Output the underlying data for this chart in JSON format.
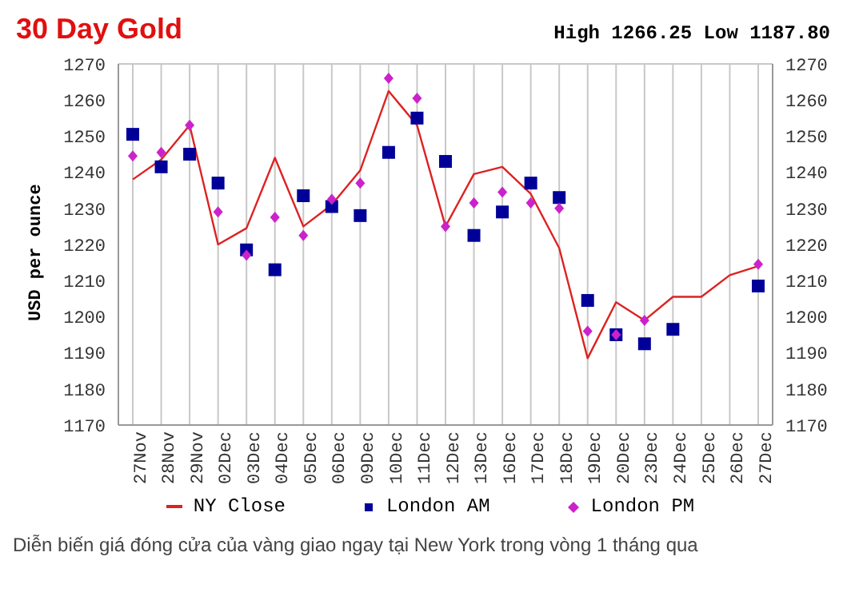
{
  "chart_data": {
    "type": "line",
    "title": "30 Day Gold",
    "subtitle": "High 1266.25 Low 1187.80",
    "ylabel": "USD per ounce",
    "annotations": [
      "Diễn biến giá đóng cửa của vàng giao ngay tại New York trong vòng 1 tháng qua"
    ],
    "categories": [
      "27Nov",
      "28Nov",
      "29Nov",
      "02Dec",
      "03Dec",
      "04Dec",
      "05Dec",
      "06Dec",
      "09Dec",
      "10Dec",
      "11Dec",
      "12Dec",
      "13Dec",
      "16Dec",
      "17Dec",
      "18Dec",
      "19Dec",
      "20Dec",
      "23Dec",
      "24Dec",
      "25Dec",
      "26Dec",
      "27Dec"
    ],
    "series": [
      {
        "name": "NY Close",
        "color": "#dd2222",
        "marker": "none",
        "line_style": "solid",
        "values": [
          1238,
          1243.5,
          1253,
          1220,
          1224.5,
          1244,
          1225,
          1231,
          1240.5,
          1262.5,
          1253,
          1225,
          1239.5,
          1241.5,
          1234,
          1219,
          1188.5,
          1204,
          1199,
          1205.5,
          1205.5,
          1211.5,
          1214
        ]
      },
      {
        "name": "London AM",
        "type": "scatter",
        "color": "#000099",
        "marker": "square",
        "values": [
          1250.5,
          1241.5,
          1245,
          1237,
          1218.5,
          1213,
          1233.5,
          1230.5,
          1228,
          1245.5,
          1255,
          1243,
          1222.5,
          1229,
          1237,
          1233,
          1204.5,
          1195,
          1192.5,
          1196.5,
          null,
          null,
          1208.5
        ]
      },
      {
        "name": "London PM",
        "type": "scatter",
        "color": "#cc22cc",
        "marker": "diamond",
        "values": [
          1244.5,
          1245.5,
          1253,
          1229,
          1217,
          1227.5,
          1222.5,
          1232.5,
          1237,
          1266,
          1260.5,
          1225,
          1231.5,
          1234.5,
          1231.5,
          1230,
          1196,
          1195,
          1199,
          null,
          null,
          null,
          1214.5
        ]
      }
    ],
    "ylim": [
      1170,
      1270
    ],
    "yticks": [
      1170,
      1180,
      1190,
      1200,
      1210,
      1220,
      1230,
      1240,
      1250,
      1260,
      1270
    ],
    "y2lim": [
      1170,
      1270
    ],
    "y2ticks": [
      1170,
      1180,
      1190,
      1200,
      1210,
      1220,
      1230,
      1240,
      1250,
      1260,
      1270
    ],
    "grid": true,
    "legend": "bottom"
  }
}
